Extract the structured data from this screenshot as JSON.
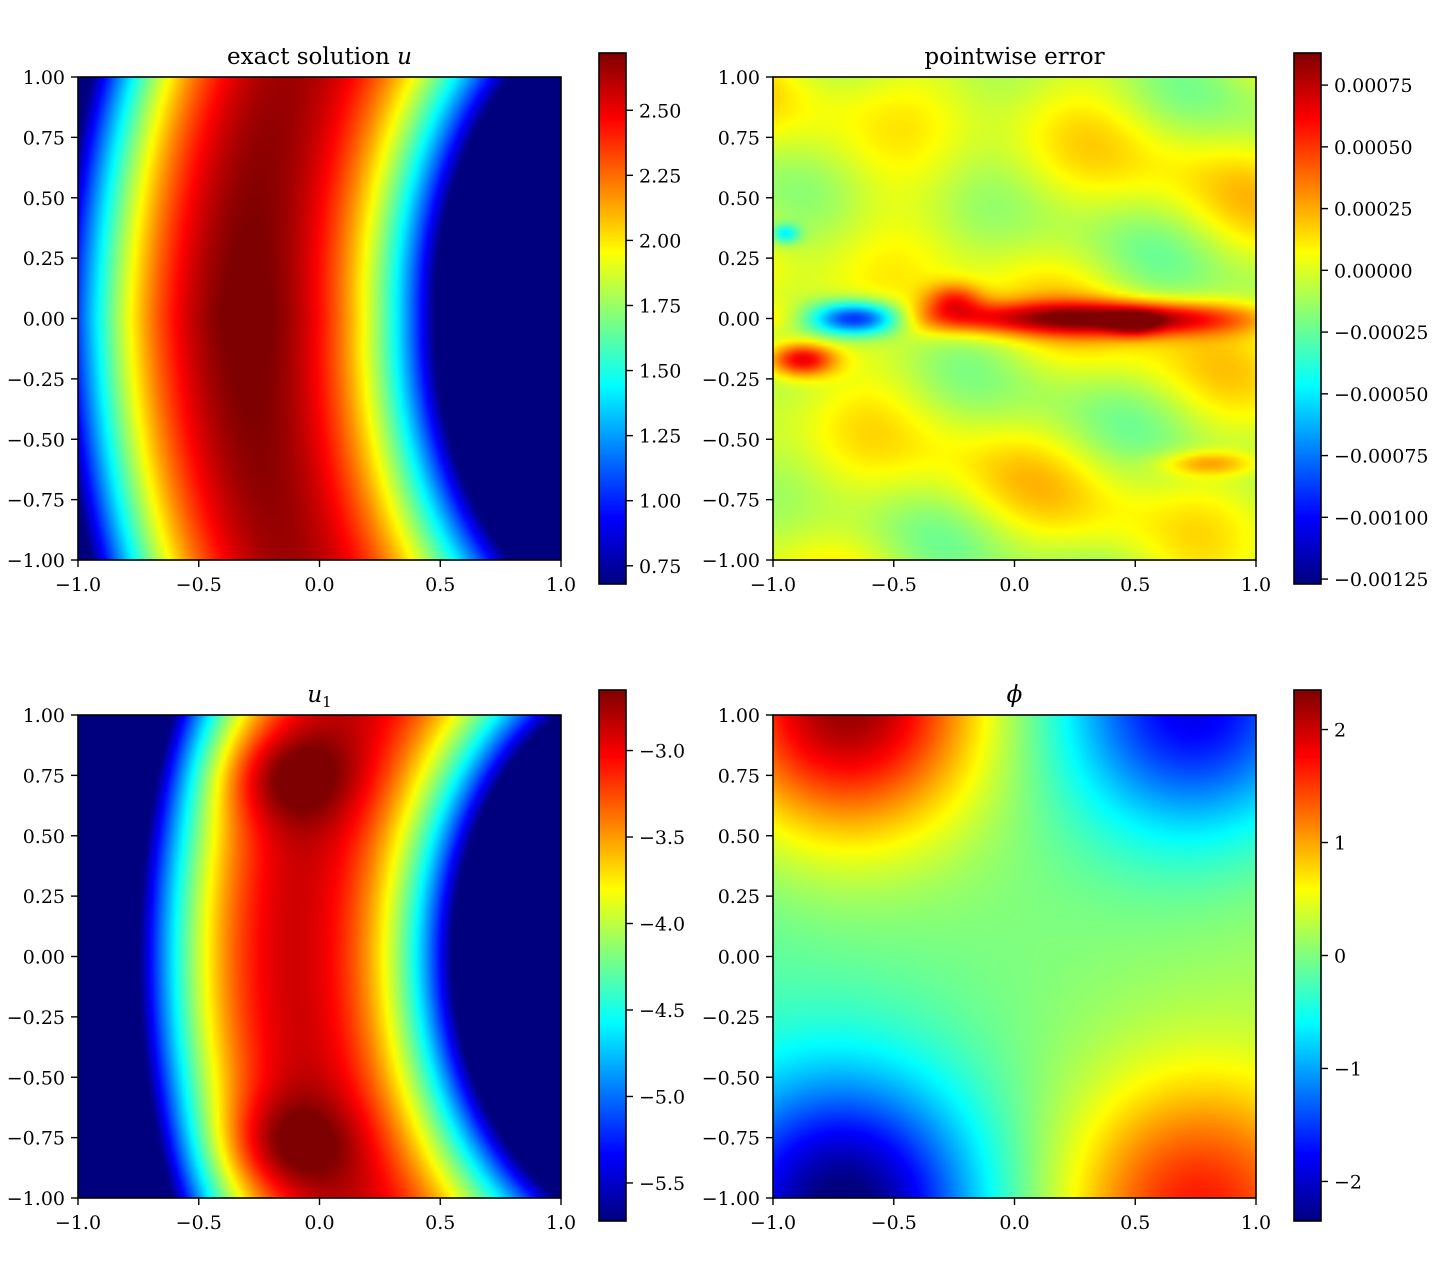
{
  "colors": {
    "colormap": "jet",
    "jet_stops": [
      "#00007f",
      "#0000ff",
      "#007fff",
      "#00ffff",
      "#7fff7f",
      "#ffff00",
      "#ff7f00",
      "#ff0000",
      "#7f0000"
    ]
  },
  "chart_data": [
    {
      "type": "heatmap",
      "title_text": "exact solution ",
      "title_symbol": "u",
      "title_sub": "",
      "x_range": [
        -1.0,
        1.0
      ],
      "y_range": [
        -1.0,
        1.0
      ],
      "x_ticks": [
        -1.0,
        -0.5,
        0.0,
        0.5,
        1.0
      ],
      "x_tick_labels": [
        "−1.0",
        "−0.5",
        "0.0",
        "0.5",
        "1.0"
      ],
      "y_ticks": [
        1.0,
        0.75,
        0.5,
        0.25,
        0.0,
        -0.25,
        -0.5,
        -0.75,
        -1.0
      ],
      "y_tick_labels": [
        "1.00",
        "0.75",
        "0.50",
        "0.25",
        "0.00",
        "−0.25",
        "−0.50",
        "−0.75",
        "−1.00"
      ],
      "colorbar": {
        "range": [
          0.68,
          2.72
        ],
        "ticks": [
          2.5,
          2.25,
          2.0,
          1.75,
          1.5,
          1.25,
          1.0,
          0.75
        ],
        "tick_labels": [
          "2.50",
          "2.25",
          "2.00",
          "1.75",
          "1.50",
          "1.25",
          "1.00",
          "0.75"
        ]
      },
      "grid": false
    },
    {
      "type": "heatmap",
      "title_text": "pointwise error",
      "title_symbol": "",
      "title_sub": "",
      "x_range": [
        -1.0,
        1.0
      ],
      "y_range": [
        -1.0,
        1.0
      ],
      "x_ticks": [
        -1.0,
        -0.5,
        0.0,
        0.5,
        1.0
      ],
      "x_tick_labels": [
        "−1.0",
        "−0.5",
        "0.0",
        "0.5",
        "1.0"
      ],
      "y_ticks": [
        1.0,
        0.75,
        0.5,
        0.25,
        0.0,
        -0.25,
        -0.5,
        -0.75,
        -1.0
      ],
      "y_tick_labels": [
        "1.00",
        "0.75",
        "0.50",
        "0.25",
        "0.00",
        "−0.25",
        "−0.50",
        "−0.75",
        "−1.00"
      ],
      "colorbar": {
        "range": [
          -0.00127,
          0.00088
        ],
        "ticks": [
          0.00075,
          0.0005,
          0.00025,
          0.0,
          -0.00025,
          -0.0005,
          -0.00075,
          -0.001,
          -0.00125
        ],
        "tick_labels": [
          "0.00075",
          "0.00050",
          "0.00025",
          "0.00000",
          "−0.00025",
          "−0.00050",
          "−0.00075",
          "−0.00100",
          "−0.00125"
        ]
      },
      "grid": false
    },
    {
      "type": "heatmap",
      "title_text": "",
      "title_symbol": "u",
      "title_sub": "1",
      "x_range": [
        -1.0,
        1.0
      ],
      "y_range": [
        -1.0,
        1.0
      ],
      "x_ticks": [
        -1.0,
        -0.5,
        0.0,
        0.5,
        1.0
      ],
      "x_tick_labels": [
        "−1.0",
        "−0.5",
        "0.0",
        "0.5",
        "1.0"
      ],
      "y_ticks": [
        1.0,
        0.75,
        0.5,
        0.25,
        0.0,
        -0.25,
        -0.5,
        -0.75,
        -1.0
      ],
      "y_tick_labels": [
        "1.00",
        "0.75",
        "0.50",
        "0.25",
        "0.00",
        "−0.25",
        "−0.50",
        "−0.75",
        "−1.00"
      ],
      "colorbar": {
        "range": [
          -5.72,
          -2.65
        ],
        "ticks": [
          -3.0,
          -3.5,
          -4.0,
          -4.5,
          -5.0,
          -5.5
        ],
        "tick_labels": [
          "−3.0",
          "−3.5",
          "−4.0",
          "−4.5",
          "−5.0",
          "−5.5"
        ]
      },
      "grid": false
    },
    {
      "type": "heatmap",
      "title_text": "",
      "title_symbol": "ϕ",
      "title_sub": "",
      "x_range": [
        -1.0,
        1.0
      ],
      "y_range": [
        -1.0,
        1.0
      ],
      "x_ticks": [
        -1.0,
        -0.5,
        0.0,
        0.5,
        1.0
      ],
      "x_tick_labels": [
        "−1.0",
        "−0.5",
        "0.0",
        "0.5",
        "1.0"
      ],
      "y_ticks": [
        1.0,
        0.75,
        0.5,
        0.25,
        0.0,
        -0.25,
        -0.5,
        -0.75,
        -1.0
      ],
      "y_tick_labels": [
        "1.00",
        "0.75",
        "0.50",
        "0.25",
        "0.00",
        "−0.25",
        "−0.50",
        "−0.75",
        "−1.00"
      ],
      "colorbar": {
        "range": [
          -2.35,
          2.35
        ],
        "ticks": [
          2,
          1,
          0,
          -1,
          -2
        ],
        "tick_labels": [
          "2",
          "1",
          "0",
          "−1",
          "−2"
        ]
      },
      "grid": false
    }
  ]
}
